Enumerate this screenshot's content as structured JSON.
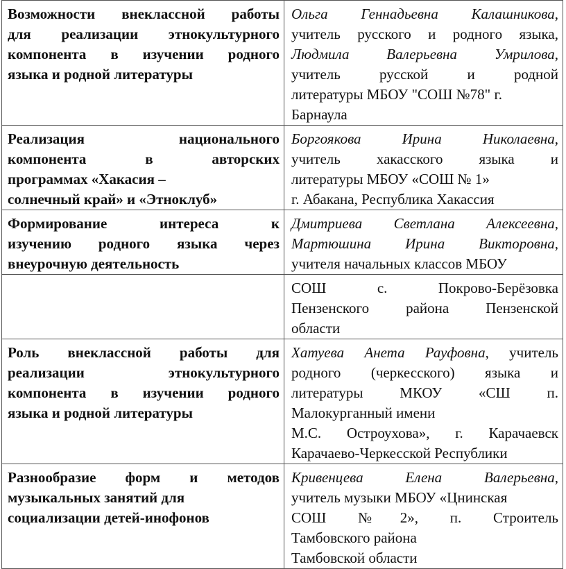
{
  "rows": [
    {
      "left": [
        {
          "j": true,
          "segs": [
            {
              "t": "Возможности внеклассной работы"
            }
          ]
        },
        {
          "j": true,
          "segs": [
            {
              "t": "для реализации этнокультурного"
            }
          ]
        },
        {
          "j": true,
          "segs": [
            {
              "t": "компонента в изучении родного"
            }
          ]
        },
        {
          "j": false,
          "segs": [
            {
              "t": "языка и родной литературы"
            }
          ]
        }
      ],
      "right": [
        {
          "j": true,
          "segs": [
            {
              "t": "Ольга Геннадьевна Калашникова",
              "i": true
            },
            {
              "t": ","
            }
          ]
        },
        {
          "j": true,
          "segs": [
            {
              "t": "учитель русского и родного языка,"
            }
          ]
        },
        {
          "j": true,
          "segs": [
            {
              "t": "Людмила Валерьевна Умрилова",
              "i": true
            },
            {
              "t": ","
            }
          ]
        },
        {
          "j": true,
          "segs": [
            {
              "t": "учитель русской и родной"
            }
          ]
        },
        {
          "j": false,
          "segs": [
            {
              "t": "литературы МБОУ \"СОШ №78\" г."
            }
          ]
        },
        {
          "j": false,
          "segs": [
            {
              "t": "Барнаула"
            }
          ]
        }
      ]
    },
    {
      "left": [
        {
          "j": true,
          "segs": [
            {
              "t": "Реализация национального"
            }
          ]
        },
        {
          "j": true,
          "segs": [
            {
              "t": "компонента в авторских"
            }
          ]
        },
        {
          "j": false,
          "segs": [
            {
              "t": "программах «Хакасия –"
            }
          ]
        },
        {
          "j": false,
          "segs": [
            {
              "t": "солнечный край» и «Этноклуб»"
            }
          ]
        }
      ],
      "right": [
        {
          "j": true,
          "segs": [
            {
              "t": "Боргоякова Ирина Николаевна",
              "i": true
            },
            {
              "t": ","
            }
          ]
        },
        {
          "j": true,
          "segs": [
            {
              "t": "учитель хакасского языка и"
            }
          ]
        },
        {
          "j": false,
          "segs": [
            {
              "t": "литературы МБОУ «СОШ № 1»"
            }
          ]
        },
        {
          "j": false,
          "segs": [
            {
              "t": "г. Абакана, Республика Хакассия"
            }
          ]
        }
      ]
    },
    {
      "left": [
        {
          "j": true,
          "segs": [
            {
              "t": "Формирование интереса к"
            }
          ]
        },
        {
          "j": true,
          "segs": [
            {
              "t": "изучению родного языка через"
            }
          ]
        },
        {
          "j": false,
          "segs": [
            {
              "t": "внеурочную деятельность"
            }
          ]
        }
      ],
      "right": [
        {
          "j": true,
          "segs": [
            {
              "t": "Дмитриева Светлана Алексеевна",
              "i": true
            },
            {
              "t": ","
            }
          ]
        },
        {
          "j": true,
          "segs": [
            {
              "t": "Мартюшина Ирина Викторовна",
              "i": true
            },
            {
              "t": ","
            }
          ]
        },
        {
          "j": false,
          "segs": [
            {
              "t": "учителя начальных классов МБОУ"
            }
          ]
        }
      ]
    },
    {
      "left": [],
      "right": [
        {
          "j": true,
          "segs": [
            {
              "t": "СОШ с. Покрово-Берёзовка"
            }
          ]
        },
        {
          "j": true,
          "segs": [
            {
              "t": "Пензенского района Пензенской"
            }
          ]
        },
        {
          "j": false,
          "segs": [
            {
              "t": "области"
            }
          ]
        }
      ]
    },
    {
      "left": [
        {
          "j": true,
          "segs": [
            {
              "t": "Роль внеклассной работы для"
            }
          ]
        },
        {
          "j": true,
          "segs": [
            {
              "t": "реализации этнокультурного"
            }
          ]
        },
        {
          "j": true,
          "segs": [
            {
              "t": "компонента в изучении родного"
            }
          ]
        },
        {
          "j": false,
          "segs": [
            {
              "t": "языка и родной литературы"
            }
          ]
        }
      ],
      "right": [
        {
          "j": true,
          "segs": [
            {
              "t": "Хатуева Анета Рауфовна",
              "i": true
            },
            {
              "t": ", учитель"
            }
          ]
        },
        {
          "j": true,
          "segs": [
            {
              "t": "родного (черкесского) языка и"
            }
          ]
        },
        {
          "j": true,
          "segs": [
            {
              "t": "литературы МКОУ «СШ п."
            }
          ]
        },
        {
          "j": false,
          "segs": [
            {
              "t": "Малокурганный имени"
            }
          ]
        },
        {
          "j": true,
          "segs": [
            {
              "t": "М.С. Остроухова», г. Карачаевск"
            }
          ]
        },
        {
          "j": false,
          "segs": [
            {
              "t": "Карачаево-Черкесской Республики"
            }
          ]
        }
      ]
    },
    {
      "left": [
        {
          "j": true,
          "segs": [
            {
              "t": "Разнообразие форм и методов"
            }
          ]
        },
        {
          "j": false,
          "segs": [
            {
              "t": "музыкальных занятий для"
            }
          ]
        },
        {
          "j": false,
          "segs": [
            {
              "t": "социализации детей-инофонов"
            }
          ]
        }
      ],
      "right": [
        {
          "j": true,
          "segs": [
            {
              "t": "Кривенцева Елена Валерьевна",
              "i": true
            },
            {
              "t": ","
            }
          ]
        },
        {
          "j": false,
          "segs": [
            {
              "t": "учитель музыки МБОУ «Цнинская"
            }
          ]
        },
        {
          "j": true,
          "segs": [
            {
              "t": "СОШ №2», п. Строитель"
            }
          ]
        },
        {
          "j": false,
          "segs": [
            {
              "t": "Тамбовского        района"
            }
          ]
        },
        {
          "j": false,
          "segs": [
            {
              "t": "Тамбовской области"
            }
          ]
        }
      ]
    }
  ]
}
